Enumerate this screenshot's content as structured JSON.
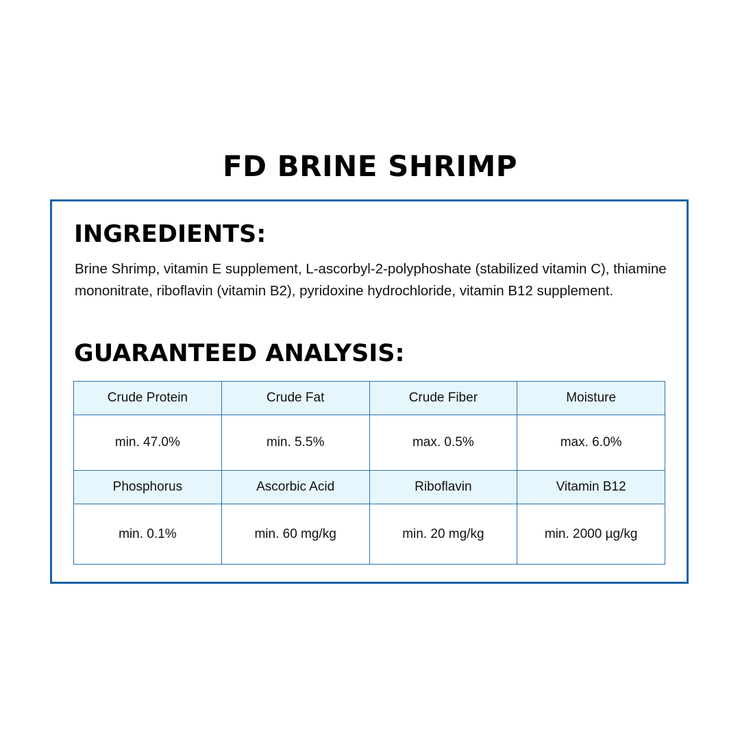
{
  "title": "FD BRINE SHRIMP",
  "ingredients": {
    "heading": "INGREDIENTS:",
    "text": "Brine Shrimp, vitamin E supplement, L-ascorbyl-2-polyphoshate (stabilized vitamin C), thiamine mononitrate, riboflavin (vitamin B2), pyridoxine hydrochloride, vitamin B12 supplement."
  },
  "analysis": {
    "heading": "GUARANTEED ANALYSIS:",
    "rows": [
      {
        "labels": [
          "Crude Protein",
          "Crude Fat",
          "Crude Fiber",
          "Moisture"
        ],
        "values": [
          "min. 47.0%",
          "min. 5.5%",
          "max. 0.5%",
          "max. 6.0%"
        ]
      },
      {
        "labels": [
          "Phosphorus",
          "Ascorbic Acid",
          "Riboflavin",
          "Vitamin B12"
        ],
        "values": [
          "min. 0.1%",
          "min. 60 mg/kg",
          "min. 20 mg/kg",
          "min. 2000 µg/kg"
        ]
      }
    ]
  },
  "colors": {
    "border": "#1a63a8",
    "header_bg": "#e6f6fd",
    "table_border": "#2a72b5"
  }
}
